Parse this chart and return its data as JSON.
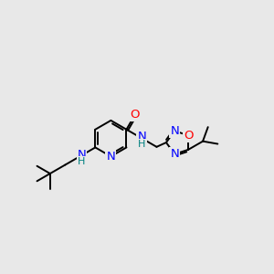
{
  "background_color": "#e8e8e8",
  "colors": {
    "C": "#000000",
    "N": "#0000ff",
    "O": "#ff0000",
    "H": "#008080",
    "bond": "#000000"
  },
  "bond_lw": 1.4,
  "font_size": 9.5,
  "font_size_h": 8.0
}
